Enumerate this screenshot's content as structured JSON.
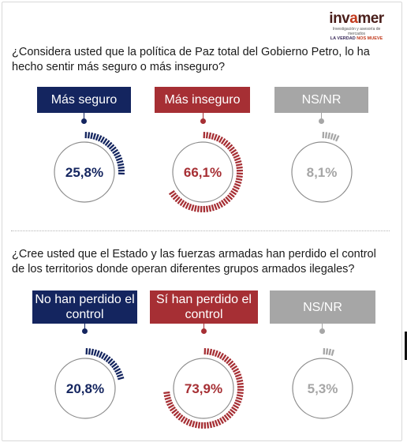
{
  "logo": {
    "word_pre": "inv",
    "word_accent": "a",
    "word_post": "mer",
    "tagline": "Investigación y asesoría de mercados",
    "slogan_pre": "LA VERDAD ",
    "slogan_hl": "NOS MUEVE"
  },
  "questions": [
    {
      "text": "¿Considera usted que la política de Paz total del Gobierno Petro, lo ha hecho sentir más seguro o más inseguro?"
    },
    {
      "text": "¿Cree usted que el Estado y las fuerzas armadas han perdido el control de los territorios donde operan diferentes grupos armados ilegales?"
    }
  ],
  "colors": {
    "navy": "#14255f",
    "red": "#a62f34",
    "gray": "#a6a6a6"
  },
  "chart_data": [
    {
      "type": "pie",
      "categories": [
        "Más seguro",
        "Más inseguro",
        "NS/NR"
      ],
      "values": [
        25.8,
        66.1,
        8.1
      ],
      "value_labels": [
        "25,8%",
        "66,1%",
        "8,1%"
      ],
      "title": ""
    },
    {
      "type": "pie",
      "categories": [
        "No han perdido el control",
        "Sí han perdido el control",
        "NS/NR"
      ],
      "values": [
        20.8,
        73.9,
        5.3
      ],
      "value_labels": [
        "20,8%",
        "73,9%",
        "5,3%"
      ],
      "title": ""
    }
  ]
}
